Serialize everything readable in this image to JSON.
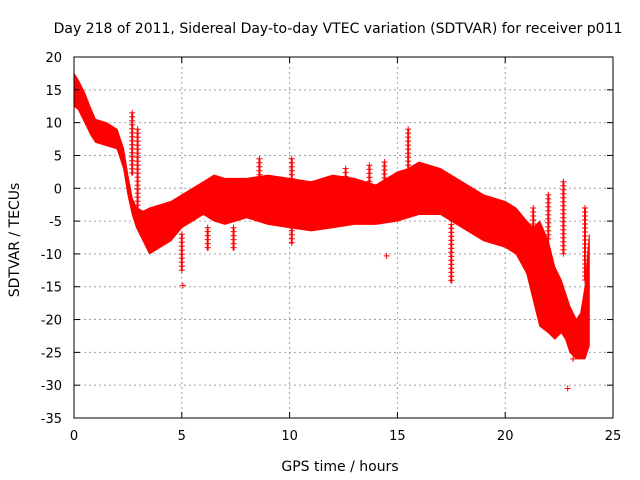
{
  "chart_data": {
    "type": "scatter",
    "title": "Day 218 of 2011, Sidereal Day-to-day VTEC variation (SDTVAR) for receiver p011",
    "xlabel": "GPS time / hours",
    "ylabel": "SDTVAR / TECUs",
    "xlim": [
      0,
      25
    ],
    "ylim": [
      -35,
      20
    ],
    "xticks": [
      0,
      5,
      10,
      15,
      20,
      25
    ],
    "yticks": [
      20,
      15,
      10,
      5,
      0,
      -5,
      -10,
      -15,
      -20,
      -25,
      -30,
      -35
    ],
    "grid": true,
    "series_color": "#ff0000",
    "marker": "plus",
    "envelope": {
      "x": [
        0.0,
        0.2,
        0.5,
        0.8,
        1.0,
        1.5,
        2.0,
        2.3,
        2.5,
        2.7,
        2.9,
        3.2,
        3.5,
        4.0,
        4.5,
        5.0,
        5.5,
        6.0,
        6.5,
        7.0,
        7.5,
        8.0,
        9.0,
        10.0,
        11.0,
        12.0,
        13.0,
        14.0,
        15.0,
        15.5,
        16.0,
        17.0,
        18.0,
        19.0,
        20.0,
        20.5,
        21.0,
        21.3,
        21.6,
        22.0,
        22.3,
        22.6,
        22.8,
        23.0,
        23.3,
        23.5,
        23.7,
        23.9
      ],
      "ymax": [
        17.5,
        16.5,
        14.5,
        12.0,
        10.5,
        10.0,
        9.0,
        6.0,
        2.0,
        -1.5,
        -3.0,
        -3.5,
        -3.0,
        -2.5,
        -2.0,
        -1.0,
        0.0,
        1.0,
        2.0,
        1.5,
        1.5,
        1.5,
        2.0,
        1.5,
        1.0,
        2.0,
        1.5,
        0.5,
        2.5,
        3.0,
        4.0,
        3.0,
        1.0,
        -1.0,
        -2.0,
        -3.0,
        -5.0,
        -6.0,
        -5.0,
        -8.0,
        -12.0,
        -14.0,
        -16.0,
        -18.0,
        -20.0,
        -19.0,
        -15.0,
        -7.0
      ],
      "ymin": [
        12.5,
        12.0,
        10.0,
        8.0,
        7.0,
        6.5,
        6.0,
        3.0,
        -1.0,
        -4.0,
        -6.0,
        -8.0,
        -10.0,
        -9.0,
        -8.0,
        -6.0,
        -5.0,
        -4.0,
        -5.0,
        -5.5,
        -5.0,
        -4.5,
        -5.5,
        -6.0,
        -6.5,
        -6.0,
        -5.5,
        -5.5,
        -5.0,
        -4.5,
        -4.0,
        -4.0,
        -6.0,
        -8.0,
        -9.0,
        -10.0,
        -13.0,
        -17.0,
        -21.0,
        -22.0,
        -23.0,
        -22.0,
        -23.0,
        -25.0,
        -26.0,
        -26.0,
        -26.0,
        -24.0
      ]
    },
    "spikes": [
      {
        "x": 2.7,
        "y_top": 11.5,
        "y_bottom": 2.0
      },
      {
        "x": 2.95,
        "y_top": 9.0,
        "y_bottom": -3.5
      },
      {
        "x": 5.0,
        "y_top": -7.0,
        "y_bottom": -12.5
      },
      {
        "x": 6.2,
        "y_top": -6.0,
        "y_bottom": -9.5
      },
      {
        "x": 7.4,
        "y_top": -6.0,
        "y_bottom": -9.5
      },
      {
        "x": 8.6,
        "y_top": 4.5,
        "y_bottom": 1.0
      },
      {
        "x": 10.1,
        "y_top": 4.5,
        "y_bottom": -8.5
      },
      {
        "x": 12.6,
        "y_top": 3.0,
        "y_bottom": -1.0
      },
      {
        "x": 13.7,
        "y_top": 3.5,
        "y_bottom": -1.0
      },
      {
        "x": 14.4,
        "y_top": 4.0,
        "y_bottom": 0.0
      },
      {
        "x": 15.5,
        "y_top": 9.0,
        "y_bottom": 3.0
      },
      {
        "x": 17.5,
        "y_top": -5.5,
        "y_bottom": -14.5
      },
      {
        "x": 21.3,
        "y_top": -3.0,
        "y_bottom": -10.0
      },
      {
        "x": 22.0,
        "y_top": -1.0,
        "y_bottom": -8.0
      },
      {
        "x": 22.7,
        "y_top": 1.0,
        "y_bottom": -10.0
      },
      {
        "x": 23.7,
        "y_top": -3.0,
        "y_bottom": -14.0
      }
    ],
    "outliers": [
      {
        "x": 5.05,
        "y": -14.8
      },
      {
        "x": 14.5,
        "y": -10.3
      },
      {
        "x": 22.9,
        "y": -30.5
      },
      {
        "x": 23.15,
        "y": -26.0
      }
    ]
  }
}
